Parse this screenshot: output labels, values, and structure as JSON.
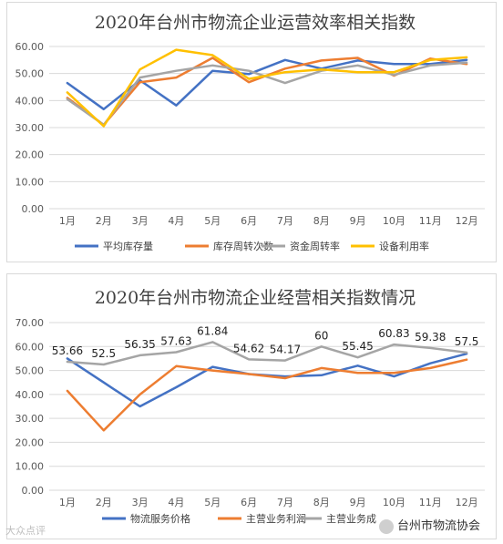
{
  "chart_data": [
    {
      "type": "line",
      "title": "2020年台州市物流企业运营效率相关指数",
      "categories": [
        "1月",
        "2月",
        "3月",
        "4月",
        "5月",
        "6月",
        "7月",
        "8月",
        "9月",
        "10月",
        "11月",
        "12月"
      ],
      "ylim": [
        0,
        60
      ],
      "yticks": [
        "0.00",
        "10.00",
        "20.00",
        "30.00",
        "40.00",
        "50.00",
        "60.00"
      ],
      "grid": true,
      "legend_position": "bottom",
      "series": [
        {
          "name": "平均库存量",
          "color": "#4472c4",
          "values": [
            46.5,
            36.8,
            47.5,
            38.2,
            51.0,
            49.8,
            55.0,
            51.8,
            54.8,
            53.5,
            53.5,
            55.0
          ]
        },
        {
          "name": "库存周转次数",
          "color": "#ed7d31",
          "values": [
            41.0,
            31.0,
            46.8,
            48.5,
            55.8,
            46.8,
            51.8,
            54.8,
            55.8,
            49.2,
            55.5,
            53.5
          ]
        },
        {
          "name": "资金周转率",
          "color": "#a5a5a5",
          "values": [
            40.5,
            31.0,
            48.5,
            51.0,
            53.0,
            51.0,
            46.5,
            51.0,
            53.0,
            49.5,
            53.0,
            54.0
          ]
        },
        {
          "name": "设备利用率",
          "color": "#ffc000",
          "values": [
            43.0,
            30.5,
            51.5,
            58.8,
            56.8,
            48.0,
            50.5,
            51.5,
            50.5,
            50.5,
            55.0,
            56.0
          ]
        }
      ]
    },
    {
      "type": "line",
      "title": "2020年台州市物流企业经营相关指数情况",
      "categories": [
        "1月",
        "2月",
        "3月",
        "4月",
        "5月",
        "6月",
        "7月",
        "8月",
        "9月",
        "10月",
        "11月",
        "12月"
      ],
      "ylim": [
        0,
        70
      ],
      "yticks": [
        "0.00",
        "10.00",
        "20.00",
        "30.00",
        "40.00",
        "50.00",
        "60.00",
        "70.00"
      ],
      "grid": true,
      "legend_position": "bottom",
      "series": [
        {
          "name": "物流服务价格",
          "color": "#4472c4",
          "values": [
            55.0,
            45.0,
            35.0,
            43.0,
            51.5,
            48.5,
            47.5,
            48.0,
            52.0,
            47.5,
            53.0,
            57.0
          ]
        },
        {
          "name": "主营业务利润",
          "color": "#ed7d31",
          "values": [
            41.5,
            25.0,
            40.0,
            51.8,
            50.0,
            48.5,
            46.8,
            51.0,
            49.0,
            49.0,
            51.0,
            54.5
          ]
        },
        {
          "name": "主营业务成",
          "color": "#a5a5a5",
          "values": [
            53.66,
            52.5,
            56.35,
            57.63,
            61.84,
            54.62,
            54.17,
            60,
            55.45,
            60.83,
            59.38,
            57.5
          ],
          "data_labels": [
            "53.66",
            "52.5",
            "56.35",
            "57.63",
            "61.84",
            "54.62",
            "54.17",
            "60",
            "55.45",
            "60.83",
            "59.38",
            "57.5"
          ]
        }
      ]
    }
  ],
  "watermark_left": "大众点评",
  "watermark_right": "台州市物流协会"
}
